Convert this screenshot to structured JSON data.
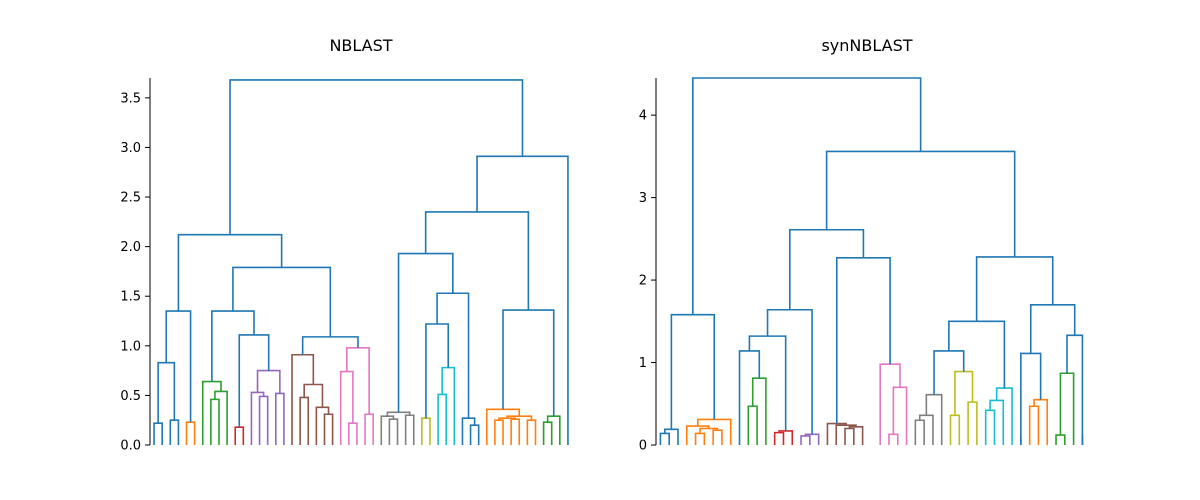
{
  "chart_data": [
    {
      "type": "dendrogram",
      "title": "NBLAST",
      "xlabel": "",
      "ylabel": "",
      "ylim": [
        0,
        3.7
      ],
      "yticks": [
        "0.0",
        "0.5",
        "1.0",
        "1.5",
        "2.0",
        "2.5",
        "3.0",
        "3.5"
      ],
      "ytick_values": [
        0.0,
        0.5,
        1.0,
        1.5,
        2.0,
        2.5,
        3.0,
        3.5
      ],
      "leaf_count": 52,
      "grid": false,
      "links": [
        {
          "x1": 0.5,
          "x2": 1.5,
          "h1": 0,
          "h2": 0,
          "h": 0.22,
          "color": "#1f77b4"
        },
        {
          "x1": 2.5,
          "x2": 3.5,
          "h1": 0,
          "h2": 0,
          "h": 0.25,
          "color": "#1f77b4"
        },
        {
          "x1": 1.0,
          "x2": 3.0,
          "h1": 0.22,
          "h2": 0.25,
          "h": 0.83,
          "color": "#1f77b4"
        },
        {
          "x1": 4.5,
          "x2": 5.5,
          "h1": 0,
          "h2": 0,
          "h": 0.23,
          "color": "#ff7f0e"
        },
        {
          "x1": 2.0,
          "x2": 5.0,
          "h1": 0.83,
          "h2": 0.23,
          "h": 1.35,
          "color": "#1f77b4"
        },
        {
          "x1": 7.5,
          "x2": 8.5,
          "h1": 0,
          "h2": 0,
          "h": 0.46,
          "color": "#2ca02c"
        },
        {
          "x1": 8.0,
          "x2": 9.5,
          "h1": 0.46,
          "h2": 0,
          "h": 0.54,
          "color": "#2ca02c"
        },
        {
          "x1": 6.5,
          "x2": 8.75,
          "h1": 0,
          "h2": 0.54,
          "h": 0.64,
          "color": "#2ca02c"
        },
        {
          "x1": 10.5,
          "x2": 11.5,
          "h1": 0,
          "h2": 0,
          "h": 0.18,
          "color": "#d62728"
        },
        {
          "x1": 13.5,
          "x2": 14.5,
          "h1": 0,
          "h2": 0,
          "h": 0.49,
          "color": "#9467bd"
        },
        {
          "x1": 12.5,
          "x2": 14.0,
          "h1": 0,
          "h2": 0.49,
          "h": 0.53,
          "color": "#9467bd"
        },
        {
          "x1": 15.5,
          "x2": 16.5,
          "h1": 0,
          "h2": 0,
          "h": 0.52,
          "color": "#9467bd"
        },
        {
          "x1": 13.25,
          "x2": 16.0,
          "h1": 0.53,
          "h2": 0.52,
          "h": 0.75,
          "color": "#9467bd"
        },
        {
          "x1": 11.0,
          "x2": 14.625,
          "h1": 0.18,
          "h2": 0.75,
          "h": 1.11,
          "color": "#1f77b4"
        },
        {
          "x1": 7.625,
          "x2": 12.8125,
          "h1": 0.64,
          "h2": 1.11,
          "h": 1.35,
          "color": "#1f77b4"
        },
        {
          "x1": 18.5,
          "x2": 19.5,
          "h1": 0,
          "h2": 0,
          "h": 0.48,
          "color": "#8c564b"
        },
        {
          "x1": 21.5,
          "x2": 22.5,
          "h1": 0,
          "h2": 0,
          "h": 0.31,
          "color": "#8c564b"
        },
        {
          "x1": 20.5,
          "x2": 22.0,
          "h1": 0,
          "h2": 0.31,
          "h": 0.38,
          "color": "#8c564b"
        },
        {
          "x1": 19.0,
          "x2": 21.25,
          "h1": 0.48,
          "h2": 0.38,
          "h": 0.61,
          "color": "#8c564b"
        },
        {
          "x1": 17.5,
          "x2": 20.125,
          "h1": 0,
          "h2": 0.61,
          "h": 0.91,
          "color": "#8c564b"
        },
        {
          "x1": 24.5,
          "x2": 25.5,
          "h1": 0,
          "h2": 0,
          "h": 0.22,
          "color": "#e377c2"
        },
        {
          "x1": 23.5,
          "x2": 25.0,
          "h1": 0,
          "h2": 0.22,
          "h": 0.74,
          "color": "#e377c2"
        },
        {
          "x1": 26.5,
          "x2": 27.5,
          "h1": 0,
          "h2": 0,
          "h": 0.31,
          "color": "#e377c2"
        },
        {
          "x1": 24.25,
          "x2": 27.0,
          "h1": 0.74,
          "h2": 0.31,
          "h": 0.98,
          "color": "#e377c2"
        },
        {
          "x1": 18.8125,
          "x2": 25.625,
          "h1": 0.91,
          "h2": 0.98,
          "h": 1.09,
          "color": "#1f77b4"
        },
        {
          "x1": 10.21875,
          "x2": 22.21875,
          "h1": 1.35,
          "h2": 1.09,
          "h": 1.79,
          "color": "#1f77b4"
        },
        {
          "x1": 3.5,
          "x2": 16.21875,
          "h1": 1.35,
          "h2": 1.79,
          "h": 2.12,
          "color": "#1f77b4"
        },
        {
          "x1": 29.5,
          "x2": 30.5,
          "h1": 0,
          "h2": 0,
          "h": 0.26,
          "color": "#7f7f7f"
        },
        {
          "x1": 28.5,
          "x2": 30.0,
          "h1": 0,
          "h2": 0.26,
          "h": 0.29,
          "color": "#7f7f7f"
        },
        {
          "x1": 31.5,
          "x2": 32.5,
          "h1": 0,
          "h2": 0,
          "h": 0.3,
          "color": "#7f7f7f"
        },
        {
          "x1": 29.25,
          "x2": 32.0,
          "h1": 0.29,
          "h2": 0.3,
          "h": 0.33,
          "color": "#7f7f7f"
        },
        {
          "x1": 33.5,
          "x2": 34.5,
          "h1": 0,
          "h2": 0,
          "h": 0.27,
          "color": "#bcbd22"
        },
        {
          "x1": 35.5,
          "x2": 36.5,
          "h1": 0,
          "h2": 0,
          "h": 0.51,
          "color": "#17becf"
        },
        {
          "x1": 36.0,
          "x2": 37.5,
          "h1": 0.51,
          "h2": 0,
          "h": 0.78,
          "color": "#17becf"
        },
        {
          "x1": 34.0,
          "x2": 36.75,
          "h1": 0.27,
          "h2": 0.78,
          "h": 1.22,
          "color": "#1f77b4"
        },
        {
          "x1": 39.5,
          "x2": 40.5,
          "h1": 0,
          "h2": 0,
          "h": 0.2,
          "color": "#1f77b4"
        },
        {
          "x1": 38.5,
          "x2": 40.0,
          "h1": 0,
          "h2": 0.2,
          "h": 0.27,
          "color": "#1f77b4"
        },
        {
          "x1": 35.375,
          "x2": 39.25,
          "h1": 1.22,
          "h2": 0.27,
          "h": 1.53,
          "color": "#1f77b4"
        },
        {
          "x1": 30.625,
          "x2": 37.3125,
          "h1": 0.33,
          "h2": 1.53,
          "h": 1.93,
          "color": "#1f77b4"
        },
        {
          "x1": 42.5,
          "x2": 43.5,
          "h1": 0,
          "h2": 0,
          "h": 0.25,
          "color": "#ff7f0e"
        },
        {
          "x1": 44.5,
          "x2": 45.5,
          "h1": 0,
          "h2": 0,
          "h": 0.26,
          "color": "#ff7f0e"
        },
        {
          "x1": 43.0,
          "x2": 45.0,
          "h1": 0.25,
          "h2": 0.26,
          "h": 0.27,
          "color": "#ff7f0e"
        },
        {
          "x1": 46.5,
          "x2": 47.5,
          "h1": 0,
          "h2": 0,
          "h": 0.25,
          "color": "#ff7f0e"
        },
        {
          "x1": 44.0,
          "x2": 47.0,
          "h1": 0.27,
          "h2": 0.25,
          "h": 0.29,
          "color": "#ff7f0e"
        },
        {
          "x1": 41.5,
          "x2": 45.5,
          "h1": 0,
          "h2": 0.29,
          "h": 0.36,
          "color": "#ff7f0e"
        },
        {
          "x1": 48.5,
          "x2": 49.5,
          "h1": 0,
          "h2": 0,
          "h": 0.23,
          "color": "#2ca02c"
        },
        {
          "x1": 49.0,
          "x2": 50.5,
          "h1": 0.23,
          "h2": 0,
          "h": 0.29,
          "color": "#2ca02c"
        },
        {
          "x1": 43.5,
          "x2": 49.75,
          "h1": 0.36,
          "h2": 0.29,
          "h": 1.36,
          "color": "#1f77b4"
        },
        {
          "x1": 33.96875,
          "x2": 46.625,
          "h1": 1.93,
          "h2": 1.36,
          "h": 2.35,
          "color": "#1f77b4"
        },
        {
          "x1": 40.296875,
          "x2": 51.5,
          "h1": 2.35,
          "h2": 0,
          "h": 2.91,
          "color": "#1f77b4"
        },
        {
          "x1": 9.859375,
          "x2": 45.8984375,
          "h1": 2.12,
          "h2": 2.91,
          "h": 3.68,
          "color": "#1f77b4"
        }
      ]
    },
    {
      "type": "dendrogram",
      "title": "synNBLAST",
      "xlabel": "",
      "ylabel": "",
      "ylim": [
        0,
        4.45
      ],
      "yticks": [
        "0",
        "1",
        "2",
        "3",
        "4"
      ],
      "ytick_values": [
        0,
        1,
        2,
        3,
        4
      ],
      "leaf_count": 48,
      "grid": false,
      "links": [
        {
          "x1": 0.5,
          "x2": 1.5,
          "h1": 0,
          "h2": 0,
          "h": 0.14,
          "color": "#1f77b4"
        },
        {
          "x1": 1.0,
          "x2": 2.5,
          "h1": 0.14,
          "h2": 0,
          "h": 0.19,
          "color": "#1f77b4"
        },
        {
          "x1": 4.5,
          "x2": 5.5,
          "h1": 0,
          "h2": 0,
          "h": 0.14,
          "color": "#ff7f0e"
        },
        {
          "x1": 6.5,
          "x2": 7.5,
          "h1": 0,
          "h2": 0,
          "h": 0.18,
          "color": "#ff7f0e"
        },
        {
          "x1": 5.0,
          "x2": 7.0,
          "h1": 0.14,
          "h2": 0.18,
          "h": 0.2,
          "color": "#ff7f0e"
        },
        {
          "x1": 3.5,
          "x2": 6.0,
          "h1": 0,
          "h2": 0.2,
          "h": 0.23,
          "color": "#ff7f0e"
        },
        {
          "x1": 4.75,
          "x2": 8.5,
          "h1": 0.23,
          "h2": 0,
          "h": 0.31,
          "color": "#ff7f0e"
        },
        {
          "x1": 1.75,
          "x2": 6.625,
          "h1": 0.19,
          "h2": 0.31,
          "h": 1.58,
          "color": "#1f77b4"
        },
        {
          "x1": 10.5,
          "x2": 11.5,
          "h1": 0,
          "h2": 0,
          "h": 0.47,
          "color": "#2ca02c"
        },
        {
          "x1": 11.0,
          "x2": 12.5,
          "h1": 0.47,
          "h2": 0,
          "h": 0.81,
          "color": "#2ca02c"
        },
        {
          "x1": 9.5,
          "x2": 11.75,
          "h1": 0,
          "h2": 0.81,
          "h": 1.14,
          "color": "#1f77b4"
        },
        {
          "x1": 13.5,
          "x2": 14.5,
          "h1": 0,
          "h2": 0,
          "h": 0.15,
          "color": "#d62728"
        },
        {
          "x1": 14.0,
          "x2": 15.5,
          "h1": 0.15,
          "h2": 0,
          "h": 0.17,
          "color": "#d62728"
        },
        {
          "x1": 10.625,
          "x2": 14.75,
          "h1": 1.14,
          "h2": 0.17,
          "h": 1.32,
          "color": "#1f77b4"
        },
        {
          "x1": 16.5,
          "x2": 17.5,
          "h1": 0,
          "h2": 0,
          "h": 0.11,
          "color": "#9467bd"
        },
        {
          "x1": 17.0,
          "x2": 18.5,
          "h1": 0.11,
          "h2": 0,
          "h": 0.13,
          "color": "#9467bd"
        },
        {
          "x1": 12.6875,
          "x2": 17.75,
          "h1": 1.32,
          "h2": 0.13,
          "h": 1.64,
          "color": "#1f77b4"
        },
        {
          "x1": 21.5,
          "x2": 22.5,
          "h1": 0,
          "h2": 0,
          "h": 0.2,
          "color": "#8c564b"
        },
        {
          "x1": 22.0,
          "x2": 23.5,
          "h1": 0.2,
          "h2": 0,
          "h": 0.22,
          "color": "#8c564b"
        },
        {
          "x1": 20.5,
          "x2": 22.75,
          "h1": 0,
          "h2": 0.22,
          "h": 0.24,
          "color": "#8c564b"
        },
        {
          "x1": 19.5,
          "x2": 21.625,
          "h1": 0,
          "h2": 0.24,
          "h": 0.26,
          "color": "#8c564b"
        },
        {
          "x1": 26.5,
          "x2": 27.5,
          "h1": 0,
          "h2": 0,
          "h": 0.13,
          "color": "#e377c2"
        },
        {
          "x1": 27.0,
          "x2": 28.5,
          "h1": 0.13,
          "h2": 0,
          "h": 0.7,
          "color": "#e377c2"
        },
        {
          "x1": 25.5,
          "x2": 27.75,
          "h1": 0,
          "h2": 0.7,
          "h": 0.98,
          "color": "#e377c2"
        },
        {
          "x1": 20.5625,
          "x2": 26.625,
          "h1": 0.26,
          "h2": 0.98,
          "h": 2.27,
          "color": "#1f77b4"
        },
        {
          "x1": 15.21875,
          "x2": 23.59375,
          "h1": 1.64,
          "h2": 2.27,
          "h": 2.61,
          "color": "#1f77b4"
        },
        {
          "x1": 29.5,
          "x2": 30.5,
          "h1": 0,
          "h2": 0,
          "h": 0.3,
          "color": "#7f7f7f"
        },
        {
          "x1": 30.0,
          "x2": 31.5,
          "h1": 0.3,
          "h2": 0,
          "h": 0.36,
          "color": "#7f7f7f"
        },
        {
          "x1": 30.75,
          "x2": 32.5,
          "h1": 0.36,
          "h2": 0,
          "h": 0.61,
          "color": "#7f7f7f"
        },
        {
          "x1": 33.5,
          "x2": 34.5,
          "h1": 0,
          "h2": 0,
          "h": 0.36,
          "color": "#bcbd22"
        },
        {
          "x1": 35.5,
          "x2": 36.5,
          "h1": 0,
          "h2": 0,
          "h": 0.52,
          "color": "#bcbd22"
        },
        {
          "x1": 34.0,
          "x2": 36.0,
          "h1": 0.36,
          "h2": 0.52,
          "h": 0.89,
          "color": "#bcbd22"
        },
        {
          "x1": 31.625,
          "x2": 35.0,
          "h1": 0.61,
          "h2": 0.89,
          "h": 1.14,
          "color": "#1f77b4"
        },
        {
          "x1": 37.5,
          "x2": 38.5,
          "h1": 0,
          "h2": 0,
          "h": 0.42,
          "color": "#17becf"
        },
        {
          "x1": 38.0,
          "x2": 39.5,
          "h1": 0.42,
          "h2": 0,
          "h": 0.54,
          "color": "#17becf"
        },
        {
          "x1": 38.75,
          "x2": 40.5,
          "h1": 0.54,
          "h2": 0,
          "h": 0.69,
          "color": "#17becf"
        },
        {
          "x1": 33.3125,
          "x2": 39.625,
          "h1": 1.14,
          "h2": 0.69,
          "h": 1.5,
          "color": "#1f77b4"
        },
        {
          "x1": 41.5,
          "x2": 41.5,
          "h1": 0,
          "h2": 0,
          "h": 0.1,
          "color": "#1f77b4"
        },
        {
          "x1": 42.5,
          "x2": 43.5,
          "h1": 0,
          "h2": 0,
          "h": 0.47,
          "color": "#ff7f0e"
        },
        {
          "x1": 43.0,
          "x2": 44.5,
          "h1": 0.47,
          "h2": 0,
          "h": 0.55,
          "color": "#ff7f0e"
        },
        {
          "x1": 41.5,
          "x2": 43.75,
          "h1": 0,
          "h2": 0.55,
          "h": 1.11,
          "color": "#1f77b4"
        },
        {
          "x1": 45.5,
          "x2": 46.5,
          "h1": 0,
          "h2": 0,
          "h": 0.12,
          "color": "#2ca02c"
        },
        {
          "x1": 46.0,
          "x2": 47.5,
          "h1": 0.12,
          "h2": 0,
          "h": 0.87,
          "color": "#2ca02c"
        },
        {
          "x1": 48.5,
          "x2": 48.5,
          "h1": 0,
          "h2": 0,
          "h": 0.12,
          "color": "#d62728"
        },
        {
          "x1": 46.75,
          "x2": 48.5,
          "h1": 0.87,
          "h2": 0,
          "h": 1.33,
          "color": "#1f77b4"
        },
        {
          "x1": 42.625,
          "x2": 47.625,
          "h1": 1.11,
          "h2": 1.33,
          "h": 1.7,
          "color": "#1f77b4"
        },
        {
          "x1": 36.46875,
          "x2": 45.125,
          "h1": 1.5,
          "h2": 1.7,
          "h": 2.28,
          "color": "#1f77b4"
        },
        {
          "x1": 19.40625,
          "x2": 40.796875,
          "h1": 2.61,
          "h2": 2.28,
          "h": 3.56,
          "color": "#1f77b4"
        },
        {
          "x1": 4.1875,
          "x2": 30.1015625,
          "h1": 1.58,
          "h2": 3.56,
          "h": 4.45,
          "color": "#1f77b4"
        }
      ]
    }
  ]
}
